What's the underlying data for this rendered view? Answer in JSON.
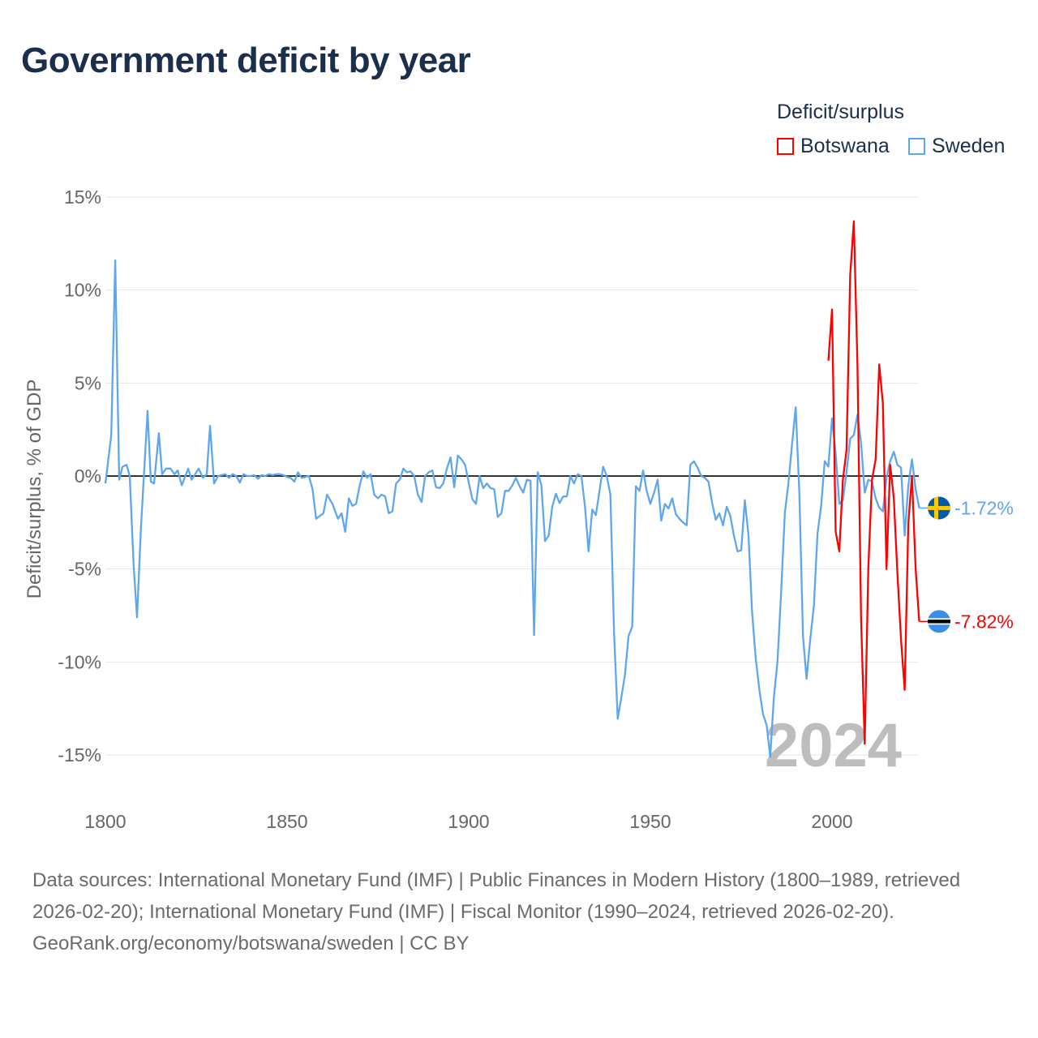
{
  "title": "Government deficit by year",
  "legend": {
    "title": "Deficit/surplus",
    "items": [
      {
        "name": "Botswana",
        "color": "#ff0000"
      },
      {
        "name": "Sweden",
        "color": "#5ea7ee"
      }
    ]
  },
  "year_watermark": "2024",
  "footer": {
    "sources": "Data sources: International Monetary Fund (IMF) | Public Finances in Modern History (1800–1989, retrieved 2026-02-20); International Monetary Fund (IMF) | Fiscal Monitor (1990–2024, retrieved 2026-02-20).",
    "credit": "GeoRank.org/economy/botswana/sweden | CC BY"
  },
  "chart_data": {
    "type": "line",
    "title": "Government deficit by year",
    "xlabel": "",
    "ylabel": "Deficit/surplus, % of GDP",
    "xlim": [
      1800,
      2024
    ],
    "ylim": [
      -15,
      15
    ],
    "x_ticks": [
      "1800",
      "1850",
      "1900",
      "1950",
      "2000"
    ],
    "x_tick_values": [
      1800,
      1850,
      1900,
      1950,
      2000
    ],
    "y_ticks": [
      "15%",
      "10%",
      "5%",
      "0%",
      "-5%",
      "-10%",
      "-15%"
    ],
    "y_tick_values": [
      15,
      10,
      5,
      0,
      -5,
      -10,
      -15
    ],
    "grid": true,
    "legend_position": "top-right",
    "series": [
      {
        "name": "Sweden",
        "color": "#5ea7ee",
        "end_label": "-1.72%",
        "flag": "sweden-flag",
        "points": [
          [
            1800,
            -0.4
          ],
          [
            1801.6,
            2.2
          ],
          [
            1802.7,
            11.6
          ],
          [
            1803.8,
            -0.2
          ],
          [
            1804.7,
            0.5
          ],
          [
            1805.8,
            0.6
          ],
          [
            1806.7,
            0
          ],
          [
            1807.8,
            -4.9
          ],
          [
            1808.7,
            -7.6
          ],
          [
            1809.8,
            -2.7
          ],
          [
            1811.6,
            3.5
          ],
          [
            1812.5,
            -0.3
          ],
          [
            1813.4,
            -0.4
          ],
          [
            1814.7,
            2.3
          ],
          [
            1815.6,
            0.1
          ],
          [
            1816.7,
            0.4
          ],
          [
            1817.9,
            0.4
          ],
          [
            1819,
            0.1
          ],
          [
            1819.9,
            0.3
          ],
          [
            1821,
            -0.5
          ],
          [
            1822.8,
            0.4
          ],
          [
            1823.7,
            -0.2
          ],
          [
            1825.7,
            0.4
          ],
          [
            1826.8,
            -0.1
          ],
          [
            1827.9,
            0.1
          ],
          [
            1828.8,
            2.7
          ],
          [
            1829.9,
            -0.4
          ],
          [
            1831,
            0
          ],
          [
            1832,
            0.05
          ],
          [
            1833,
            0.1
          ],
          [
            1834,
            -0.1
          ],
          [
            1835,
            0.1
          ],
          [
            1836,
            0
          ],
          [
            1837,
            -0.35
          ],
          [
            1838,
            0.1
          ],
          [
            1839,
            0
          ],
          [
            1840,
            0
          ],
          [
            1841,
            0.05
          ],
          [
            1842,
            -0.15
          ],
          [
            1843,
            0.05
          ],
          [
            1844,
            0
          ],
          [
            1845,
            0.1
          ],
          [
            1846,
            0.05
          ],
          [
            1847,
            0.1
          ],
          [
            1848,
            0.1
          ],
          [
            1849,
            0.05
          ],
          [
            1850,
            -0.05
          ],
          [
            1851,
            -0.1
          ],
          [
            1852,
            -0.3
          ],
          [
            1853,
            0.2
          ],
          [
            1854,
            -0.1
          ],
          [
            1856,
            0
          ],
          [
            1857,
            -0.7
          ],
          [
            1858,
            -2.3
          ],
          [
            1860,
            -2.0
          ],
          [
            1861,
            -1.0
          ],
          [
            1862.5,
            -1.5
          ],
          [
            1864,
            -2.3
          ],
          [
            1865,
            -2.0
          ],
          [
            1866,
            -3.0
          ],
          [
            1867,
            -1.2
          ],
          [
            1868,
            -1.6
          ],
          [
            1869,
            -1.5
          ],
          [
            1870,
            -0.5
          ],
          [
            1871,
            0.25
          ],
          [
            1872,
            -0.1
          ],
          [
            1873,
            0.1
          ],
          [
            1874,
            -1.0
          ],
          [
            1875,
            -1.2
          ],
          [
            1876,
            -1.0
          ],
          [
            1877,
            -1.1
          ],
          [
            1878,
            -2.0
          ],
          [
            1879,
            -1.9
          ],
          [
            1880,
            -0.4
          ],
          [
            1881,
            -0.2
          ],
          [
            1882,
            0.4
          ],
          [
            1883,
            0.2
          ],
          [
            1884,
            0.25
          ],
          [
            1885,
            0
          ],
          [
            1886,
            -1.0
          ],
          [
            1887,
            -1.4
          ],
          [
            1888,
            0
          ],
          [
            1889,
            0.2
          ],
          [
            1890,
            0.3
          ],
          [
            1891,
            -0.6
          ],
          [
            1892,
            -0.65
          ],
          [
            1893,
            -0.4
          ],
          [
            1894,
            0.4
          ],
          [
            1895,
            1.0
          ],
          [
            1896,
            -0.6
          ],
          [
            1897,
            1.1
          ],
          [
            1898,
            0.9
          ],
          [
            1899,
            0.6
          ],
          [
            1900,
            -0.35
          ],
          [
            1901,
            -1.25
          ],
          [
            1902,
            -1.5
          ],
          [
            1903,
            0
          ],
          [
            1904,
            -0.65
          ],
          [
            1905,
            -0.4
          ],
          [
            1906,
            -0.65
          ],
          [
            1907,
            -0.7
          ],
          [
            1908,
            -2.2
          ],
          [
            1909,
            -2.0
          ],
          [
            1910,
            -0.8
          ],
          [
            1911,
            -0.8
          ],
          [
            1912,
            -0.5
          ],
          [
            1913,
            -0.1
          ],
          [
            1914,
            -0.55
          ],
          [
            1915,
            -0.9
          ],
          [
            1916,
            -0.2
          ],
          [
            1917,
            -0.25
          ],
          [
            1918,
            -8.55
          ],
          [
            1919,
            0.2
          ],
          [
            1920,
            -0.5
          ],
          [
            1921,
            -3.5
          ],
          [
            1922,
            -3.2
          ],
          [
            1923,
            -1.65
          ],
          [
            1924,
            -0.95
          ],
          [
            1925,
            -1.45
          ],
          [
            1926,
            -1.1
          ],
          [
            1927,
            -1.1
          ],
          [
            1928,
            0
          ],
          [
            1929,
            -0.4
          ],
          [
            1930,
            0.1
          ],
          [
            1931,
            0
          ],
          [
            1932,
            -1.65
          ],
          [
            1933,
            -4.05
          ],
          [
            1934,
            -1.8
          ],
          [
            1935,
            -2.1
          ],
          [
            1936,
            -0.8
          ],
          [
            1937,
            0.5
          ],
          [
            1938,
            0
          ],
          [
            1939,
            -1.0
          ],
          [
            1940,
            -8.4
          ],
          [
            1941,
            -13.05
          ],
          [
            1942,
            -11.9
          ],
          [
            1943,
            -10.7
          ],
          [
            1944,
            -8.6
          ],
          [
            1945,
            -8.1
          ],
          [
            1946,
            -0.55
          ],
          [
            1947,
            -0.8
          ],
          [
            1948,
            0.3
          ],
          [
            1949,
            -0.8
          ],
          [
            1950,
            -1.5
          ],
          [
            1951,
            -0.9
          ],
          [
            1952,
            -0.2
          ],
          [
            1953,
            -2.4
          ],
          [
            1954,
            -1.5
          ],
          [
            1955,
            -1.75
          ],
          [
            1956,
            -1.2
          ],
          [
            1957,
            -2.05
          ],
          [
            1958,
            -2.3
          ],
          [
            1959,
            -2.5
          ],
          [
            1960,
            -2.65
          ],
          [
            1961,
            0.6
          ],
          [
            1962,
            0.8
          ],
          [
            1963,
            0.45
          ],
          [
            1964,
            0
          ],
          [
            1965,
            -0.1
          ],
          [
            1966,
            -0.3
          ],
          [
            1967,
            -1.45
          ],
          [
            1968,
            -2.35
          ],
          [
            1969,
            -2.0
          ],
          [
            1970,
            -2.65
          ],
          [
            1971,
            -1.65
          ],
          [
            1972,
            -2.15
          ],
          [
            1973,
            -3.2
          ],
          [
            1974,
            -4.05
          ],
          [
            1975,
            -4.0
          ],
          [
            1976,
            -1.3
          ],
          [
            1977,
            -3.2
          ],
          [
            1978,
            -7.3
          ],
          [
            1979,
            -9.8
          ],
          [
            1980,
            -11.5
          ],
          [
            1981,
            -12.8
          ],
          [
            1982,
            -13.4
          ],
          [
            1983,
            -15.1
          ],
          [
            1984,
            -11.9
          ],
          [
            1985,
            -9.95
          ],
          [
            1986,
            -6.2
          ],
          [
            1987,
            -2.0
          ],
          [
            1988,
            -0.4
          ],
          [
            1989,
            1.7
          ],
          [
            1990,
            3.7
          ],
          [
            1991,
            -0.9
          ],
          [
            1992,
            -8.6
          ],
          [
            1993,
            -10.9
          ],
          [
            1994,
            -8.8
          ],
          [
            1995,
            -7.0
          ],
          [
            1996,
            -3.1
          ],
          [
            1997,
            -1.6
          ],
          [
            1998,
            0.8
          ],
          [
            1999,
            0.5
          ],
          [
            2000,
            3.1
          ],
          [
            2001,
            1.2
          ],
          [
            2002,
            -1.5
          ],
          [
            2003,
            -1.3
          ],
          [
            2004,
            0.2
          ],
          [
            2005,
            2.0
          ],
          [
            2006,
            2.2
          ],
          [
            2007,
            3.3
          ],
          [
            2008,
            1.8
          ],
          [
            2009,
            -0.9
          ],
          [
            2010,
            -0.2
          ],
          [
            2011,
            -0.3
          ],
          [
            2012,
            -1.2
          ],
          [
            2013,
            -1.7
          ],
          [
            2014,
            -1.9
          ],
          [
            2015,
            -0.1
          ],
          [
            2016,
            0.8
          ],
          [
            2017,
            1.3
          ],
          [
            2018,
            0.6
          ],
          [
            2019,
            0.45
          ],
          [
            2020,
            -3.2
          ],
          [
            2021,
            -0.5
          ],
          [
            2022,
            0.9
          ],
          [
            2023,
            -0.7
          ],
          [
            2024,
            -1.72
          ]
        ]
      },
      {
        "name": "Botswana",
        "color": "#ff0000",
        "end_label": "-7.82%",
        "flag": "botswana-flag",
        "points": [
          [
            1999,
            6.2
          ],
          [
            2000,
            8.95
          ],
          [
            2001,
            -3.0
          ],
          [
            2002,
            -4.05
          ],
          [
            2003,
            -0.2
          ],
          [
            2004,
            1.4
          ],
          [
            2005,
            10.8
          ],
          [
            2006,
            13.7
          ],
          [
            2007,
            5.9
          ],
          [
            2008,
            -7.6
          ],
          [
            2009,
            -14.4
          ],
          [
            2010,
            -4.9
          ],
          [
            2011,
            -0.2
          ],
          [
            2012,
            0.9
          ],
          [
            2013,
            6.0
          ],
          [
            2014,
            3.9
          ],
          [
            2015,
            -5.0
          ],
          [
            2016,
            0.6
          ],
          [
            2017,
            -1.2
          ],
          [
            2018,
            -5.2
          ],
          [
            2019,
            -8.8
          ],
          [
            2020,
            -11.5
          ],
          [
            2021,
            -2.5
          ],
          [
            2022,
            0
          ],
          [
            2023,
            -4.9
          ],
          [
            2024,
            -7.82
          ]
        ]
      }
    ]
  }
}
